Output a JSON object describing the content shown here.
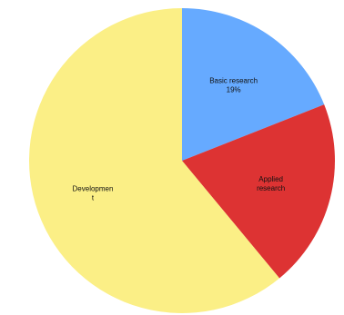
{
  "chart_data": {
    "type": "pie",
    "slices": [
      {
        "label_lines": [
          "Basic research",
          "19%"
        ],
        "value": 19,
        "color": "#66aaff"
      },
      {
        "label_lines": [
          "Applied",
          "research"
        ],
        "value": 20,
        "color": "#dd3333"
      },
      {
        "label_lines": [
          "Developmen",
          "t"
        ],
        "value": 61,
        "color": "#fbef86"
      }
    ]
  }
}
